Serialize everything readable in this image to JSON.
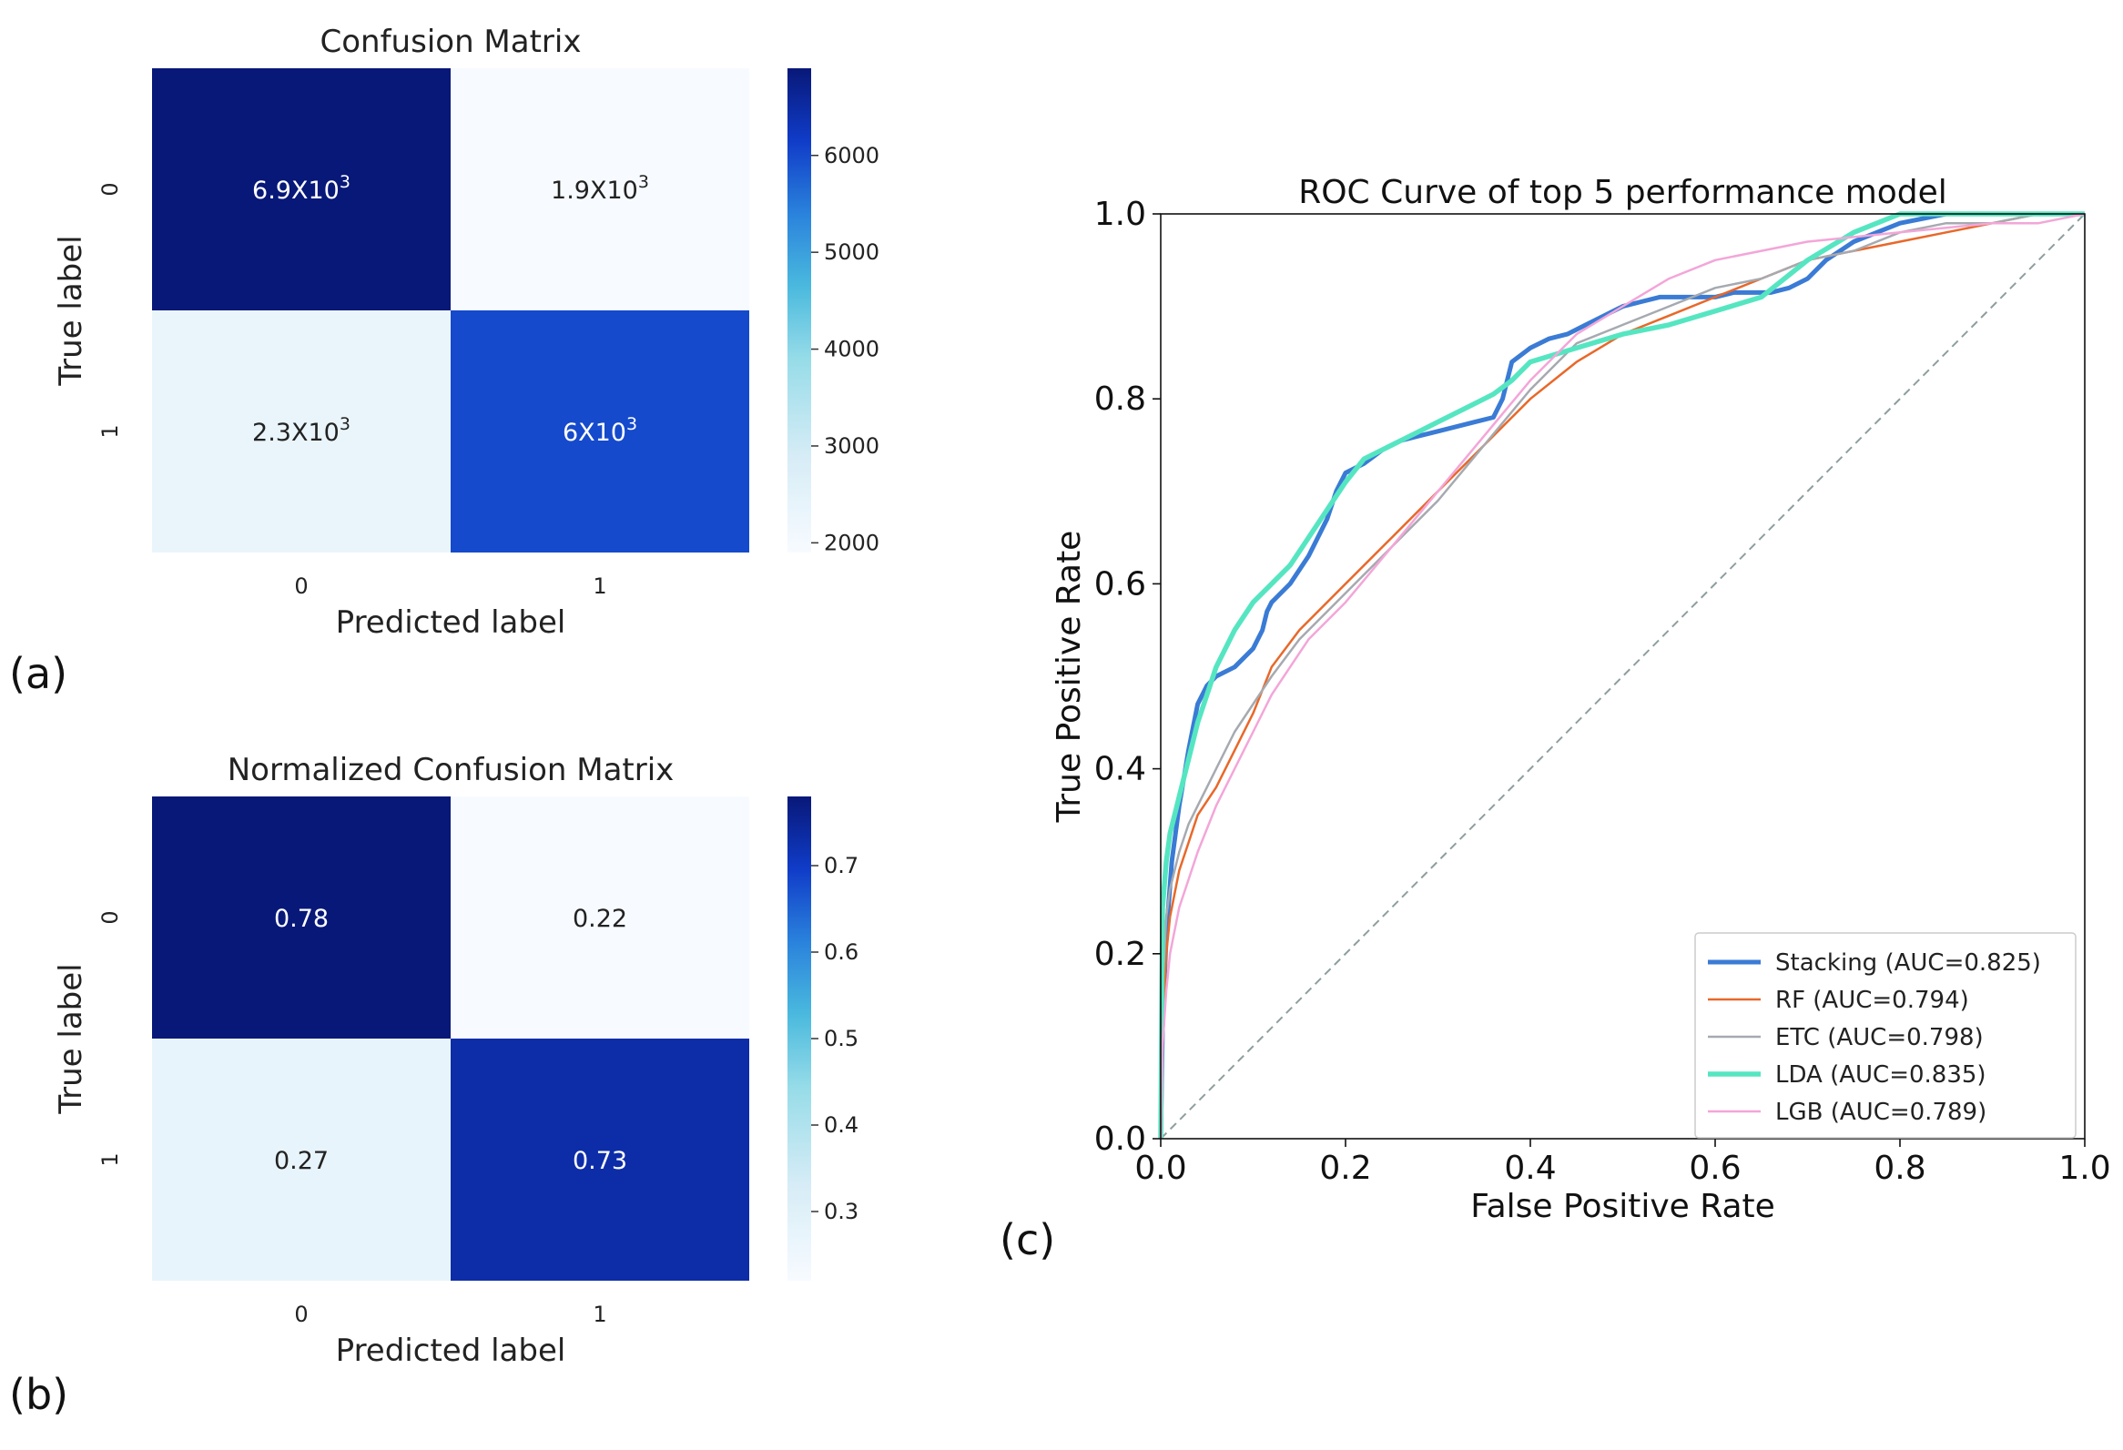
{
  "panel_labels": {
    "a": "(a)",
    "b": "(b)",
    "c": "(c)"
  },
  "chart_data": [
    {
      "type": "heatmap",
      "title": "Confusion Matrix",
      "xlabel": "Predicted label",
      "ylabel": "True label",
      "x_ticks": [
        "0",
        "1"
      ],
      "y_ticks": [
        "0",
        "1"
      ],
      "values": [
        [
          6900,
          1900
        ],
        [
          2300,
          6000
        ]
      ],
      "annotations": [
        [
          {
            "base": "6.9X10",
            "exp": "3"
          },
          {
            "base": "1.9X10",
            "exp": "3"
          }
        ],
        [
          {
            "base": "2.3X10",
            "exp": "3"
          },
          {
            "base": "6X10",
            "exp": "3"
          }
        ]
      ],
      "colorbar": {
        "min": 1900,
        "max": 6900,
        "ticks": [
          2000,
          3000,
          4000,
          5000,
          6000
        ],
        "tick_labels": [
          "2000",
          "3000",
          "4000",
          "5000",
          "6000"
        ]
      },
      "colormap": "Blues"
    },
    {
      "type": "heatmap",
      "title": "Normalized Confusion Matrix",
      "xlabel": "Predicted label",
      "ylabel": "True label",
      "x_ticks": [
        "0",
        "1"
      ],
      "y_ticks": [
        "0",
        "1"
      ],
      "values": [
        [
          0.78,
          0.22
        ],
        [
          0.27,
          0.73
        ]
      ],
      "annotations": [
        [
          {
            "base": "0.78",
            "exp": ""
          },
          {
            "base": "0.22",
            "exp": ""
          }
        ],
        [
          {
            "base": "0.27",
            "exp": ""
          },
          {
            "base": "0.73",
            "exp": ""
          }
        ]
      ],
      "colorbar": {
        "min": 0.22,
        "max": 0.78,
        "ticks": [
          0.3,
          0.4,
          0.5,
          0.6,
          0.7
        ],
        "tick_labels": [
          "0.3",
          "0.4",
          "0.5",
          "0.6",
          "0.7"
        ]
      },
      "colormap": "Blues"
    },
    {
      "type": "line",
      "title": "ROC Curve of top 5 performance model",
      "xlabel": "False Positive Rate",
      "ylabel": "True Positive Rate",
      "xlim": [
        0,
        1
      ],
      "ylim": [
        0,
        1
      ],
      "x_ticks": [
        0,
        0.2,
        0.4,
        0.6,
        0.8,
        1.0
      ],
      "x_tick_labels": [
        "0.0",
        "0.2",
        "0.4",
        "0.6",
        "0.8",
        "1.0"
      ],
      "y_ticks": [
        0,
        0.2,
        0.4,
        0.6,
        0.8,
        1.0
      ],
      "y_tick_labels": [
        "0.0",
        "0.2",
        "0.4",
        "0.6",
        "0.8",
        "1.0"
      ],
      "legend_position": "lower-right",
      "diagonal": {
        "x": [
          0,
          1
        ],
        "y": [
          0,
          1
        ],
        "color": "#8e9e9e"
      },
      "series": [
        {
          "name": "Stacking (AUC=0.825)",
          "color": "#3a7bd5",
          "width": 5,
          "x": [
            0,
            0.002,
            0.006,
            0.012,
            0.02,
            0.03,
            0.04,
            0.05,
            0.06,
            0.08,
            0.1,
            0.11,
            0.115,
            0.12,
            0.14,
            0.16,
            0.18,
            0.19,
            0.2,
            0.22,
            0.24,
            0.26,
            0.28,
            0.3,
            0.32,
            0.34,
            0.36,
            0.37,
            0.375,
            0.38,
            0.4,
            0.42,
            0.44,
            0.46,
            0.48,
            0.5,
            0.52,
            0.54,
            0.56,
            0.58,
            0.6,
            0.62,
            0.64,
            0.66,
            0.68,
            0.7,
            0.72,
            0.75,
            0.8,
            0.85,
            0.9,
            0.95,
            1.0
          ],
          "y": [
            0,
            0.12,
            0.22,
            0.3,
            0.36,
            0.42,
            0.47,
            0.49,
            0.5,
            0.51,
            0.53,
            0.55,
            0.57,
            0.58,
            0.6,
            0.63,
            0.67,
            0.7,
            0.72,
            0.73,
            0.745,
            0.755,
            0.76,
            0.765,
            0.77,
            0.775,
            0.78,
            0.8,
            0.82,
            0.84,
            0.855,
            0.865,
            0.87,
            0.88,
            0.89,
            0.9,
            0.905,
            0.91,
            0.91,
            0.91,
            0.91,
            0.915,
            0.915,
            0.915,
            0.92,
            0.93,
            0.95,
            0.97,
            0.99,
            1.0,
            1.0,
            1.0,
            1.0
          ]
        },
        {
          "name": "RF (AUC=0.794)",
          "color": "#e8682a",
          "width": 2.5,
          "x": [
            0,
            0.002,
            0.006,
            0.01,
            0.02,
            0.03,
            0.04,
            0.06,
            0.08,
            0.1,
            0.12,
            0.15,
            0.2,
            0.25,
            0.3,
            0.35,
            0.4,
            0.45,
            0.5,
            0.55,
            0.6,
            0.65,
            0.7,
            0.75,
            0.8,
            0.85,
            0.9,
            0.95,
            1.0
          ],
          "y": [
            0,
            0.12,
            0.2,
            0.24,
            0.29,
            0.32,
            0.35,
            0.38,
            0.42,
            0.46,
            0.51,
            0.55,
            0.6,
            0.65,
            0.7,
            0.75,
            0.8,
            0.84,
            0.87,
            0.89,
            0.91,
            0.93,
            0.95,
            0.96,
            0.97,
            0.98,
            0.99,
            1.0,
            1.0
          ]
        },
        {
          "name": "ETC (AUC=0.798)",
          "color": "#a6aab0",
          "width": 2.5,
          "x": [
            0,
            0.002,
            0.006,
            0.01,
            0.02,
            0.03,
            0.04,
            0.06,
            0.08,
            0.1,
            0.12,
            0.15,
            0.2,
            0.25,
            0.3,
            0.35,
            0.4,
            0.45,
            0.5,
            0.55,
            0.6,
            0.65,
            0.7,
            0.75,
            0.8,
            0.85,
            0.9,
            0.95,
            1.0
          ],
          "y": [
            0,
            0.16,
            0.24,
            0.27,
            0.31,
            0.34,
            0.36,
            0.4,
            0.44,
            0.47,
            0.5,
            0.54,
            0.59,
            0.64,
            0.69,
            0.75,
            0.81,
            0.86,
            0.88,
            0.9,
            0.92,
            0.93,
            0.95,
            0.96,
            0.98,
            0.99,
            0.99,
            1.0,
            1.0
          ]
        },
        {
          "name": "LDA (AUC=0.835)",
          "color": "#55e6c1",
          "width": 5.5,
          "x": [
            0,
            0.002,
            0.006,
            0.01,
            0.02,
            0.03,
            0.04,
            0.05,
            0.06,
            0.08,
            0.1,
            0.12,
            0.14,
            0.16,
            0.18,
            0.2,
            0.22,
            0.24,
            0.26,
            0.28,
            0.3,
            0.32,
            0.34,
            0.36,
            0.38,
            0.4,
            0.45,
            0.5,
            0.55,
            0.6,
            0.65,
            0.7,
            0.75,
            0.8,
            0.85,
            0.9,
            1.0
          ],
          "y": [
            0,
            0.25,
            0.3,
            0.33,
            0.37,
            0.41,
            0.45,
            0.48,
            0.51,
            0.55,
            0.58,
            0.6,
            0.62,
            0.65,
            0.68,
            0.71,
            0.735,
            0.745,
            0.755,
            0.765,
            0.775,
            0.785,
            0.795,
            0.805,
            0.82,
            0.84,
            0.855,
            0.87,
            0.88,
            0.895,
            0.91,
            0.95,
            0.98,
            1.0,
            1.0,
            1.0,
            1.0
          ]
        },
        {
          "name": "LGB (AUC=0.789)",
          "color": "#f3a6d8",
          "width": 2.5,
          "x": [
            0,
            0.002,
            0.006,
            0.01,
            0.02,
            0.03,
            0.04,
            0.06,
            0.08,
            0.1,
            0.12,
            0.14,
            0.16,
            0.2,
            0.25,
            0.3,
            0.35,
            0.4,
            0.45,
            0.5,
            0.55,
            0.6,
            0.65,
            0.7,
            0.75,
            0.8,
            0.85,
            0.9,
            0.95,
            1.0
          ],
          "y": [
            0,
            0.1,
            0.16,
            0.2,
            0.25,
            0.28,
            0.31,
            0.36,
            0.4,
            0.44,
            0.48,
            0.51,
            0.54,
            0.58,
            0.64,
            0.7,
            0.76,
            0.82,
            0.87,
            0.9,
            0.93,
            0.95,
            0.96,
            0.97,
            0.975,
            0.98,
            0.985,
            0.99,
            0.99,
            1.0
          ]
        }
      ]
    }
  ]
}
